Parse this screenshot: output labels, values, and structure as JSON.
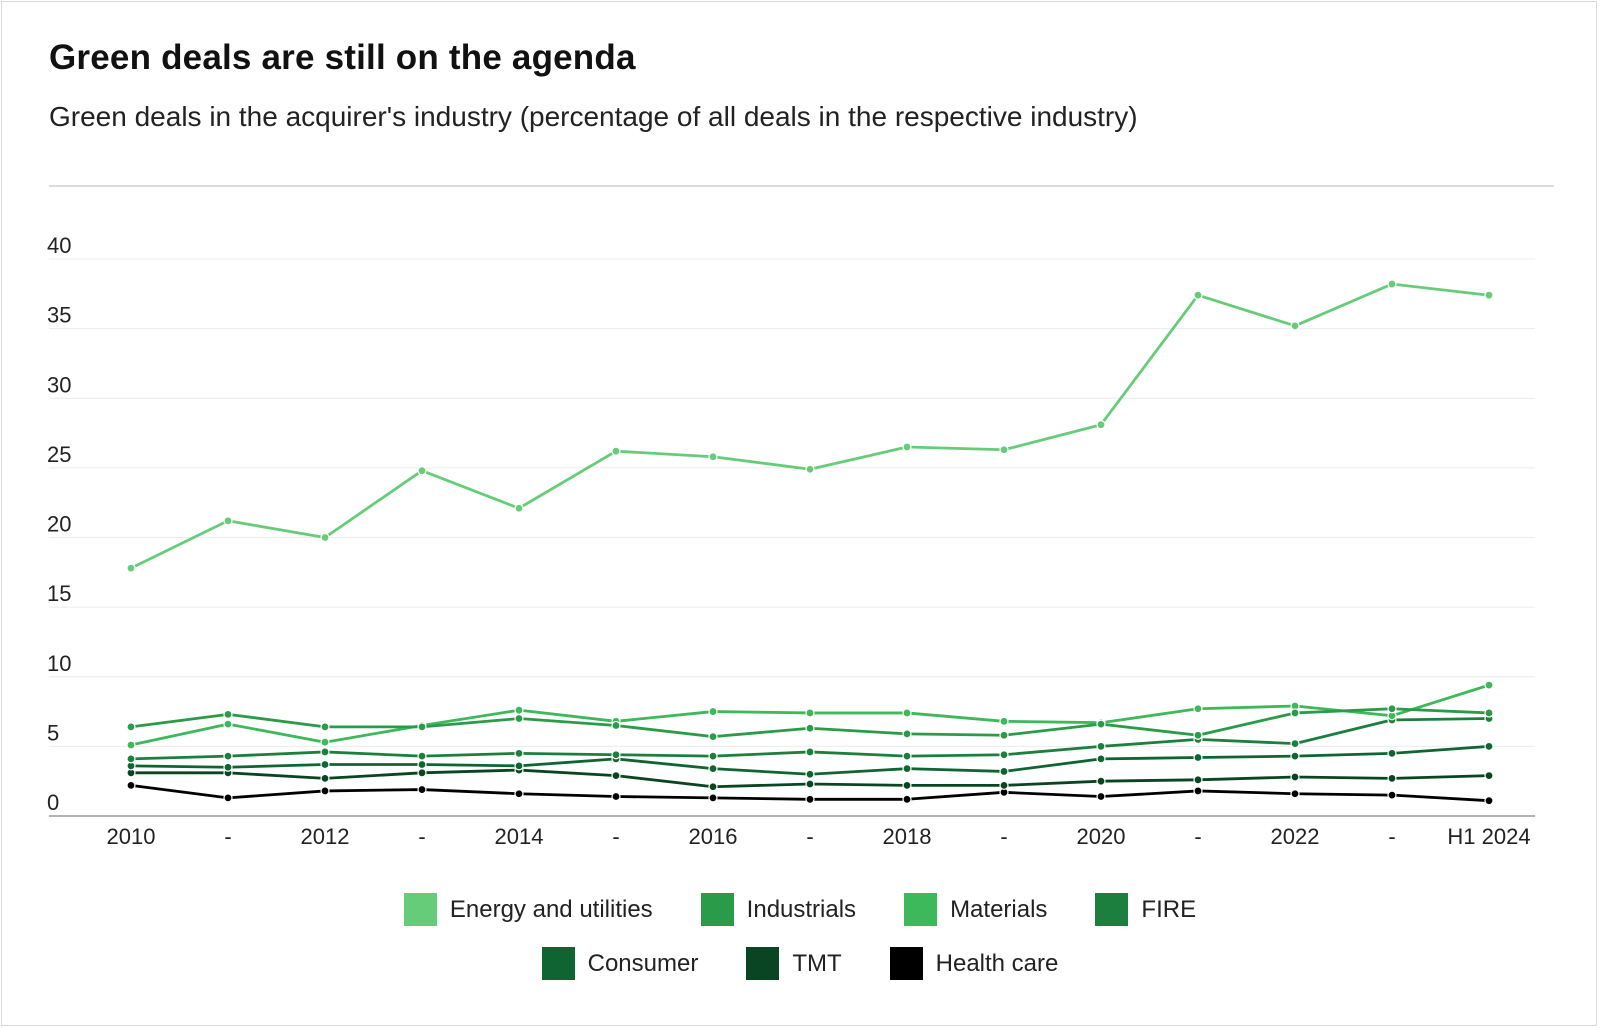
{
  "title": "Green deals are still on the agenda",
  "subtitle": "Green deals in the acquirer's industry (percentage of all deals in the respective industry)",
  "chart_data": {
    "type": "line",
    "title": "Green deals are still on the agenda",
    "subtitle": "Green deals in the acquirer's industry (percentage of all deals in the respective industry)",
    "xlabel": "",
    "ylabel": "",
    "ylim": [
      0,
      40
    ],
    "yticks": [
      "40",
      "35",
      "30",
      "25",
      "20",
      "15",
      "10",
      "5",
      "0"
    ],
    "grid": true,
    "legend_position": "bottom",
    "categories": [
      "2010",
      "-",
      "2012",
      "-",
      "2014",
      "-",
      "2016",
      "-",
      "2018",
      "-",
      "2020",
      "-",
      "2022",
      "-",
      "H1 2024"
    ],
    "series": [
      {
        "name": "Energy and utilities",
        "color": "#66cc7a",
        "values": [
          17.8,
          21.2,
          20.0,
          24.8,
          22.1,
          26.2,
          25.8,
          24.9,
          26.5,
          26.3,
          28.1,
          37.4,
          35.2,
          38.2,
          37.4
        ]
      },
      {
        "name": "Industrials",
        "color": "#2a9b48",
        "values": [
          6.4,
          7.3,
          6.4,
          6.4,
          7.0,
          6.5,
          5.7,
          6.3,
          5.9,
          5.8,
          6.6,
          5.8,
          7.4,
          7.7,
          7.4
        ]
      },
      {
        "name": "Materials",
        "color": "#3db85a",
        "values": [
          5.1,
          6.6,
          5.3,
          6.5,
          7.6,
          6.8,
          7.5,
          7.4,
          7.4,
          6.8,
          6.7,
          7.7,
          7.9,
          7.2,
          9.4
        ]
      },
      {
        "name": "FIRE",
        "color": "#1d7f3d",
        "values": [
          4.1,
          4.3,
          4.6,
          4.3,
          4.5,
          4.4,
          4.3,
          4.6,
          4.3,
          4.4,
          5.0,
          5.5,
          5.2,
          6.9,
          7.0
        ]
      },
      {
        "name": "Consumer",
        "color": "#0f6532",
        "values": [
          3.6,
          3.5,
          3.7,
          3.7,
          3.6,
          4.1,
          3.4,
          3.0,
          3.4,
          3.2,
          4.1,
          4.2,
          4.3,
          4.5,
          5.0
        ]
      },
      {
        "name": "TMT",
        "color": "#0a4523",
        "values": [
          3.1,
          3.1,
          2.7,
          3.1,
          3.3,
          2.9,
          2.1,
          2.3,
          2.2,
          2.2,
          2.5,
          2.6,
          2.8,
          2.7,
          2.9
        ]
      },
      {
        "name": "Health care",
        "color": "#000000",
        "values": [
          2.2,
          1.3,
          1.8,
          1.9,
          1.6,
          1.4,
          1.3,
          1.2,
          1.2,
          1.7,
          1.4,
          1.8,
          1.6,
          1.5,
          1.1
        ]
      }
    ]
  }
}
